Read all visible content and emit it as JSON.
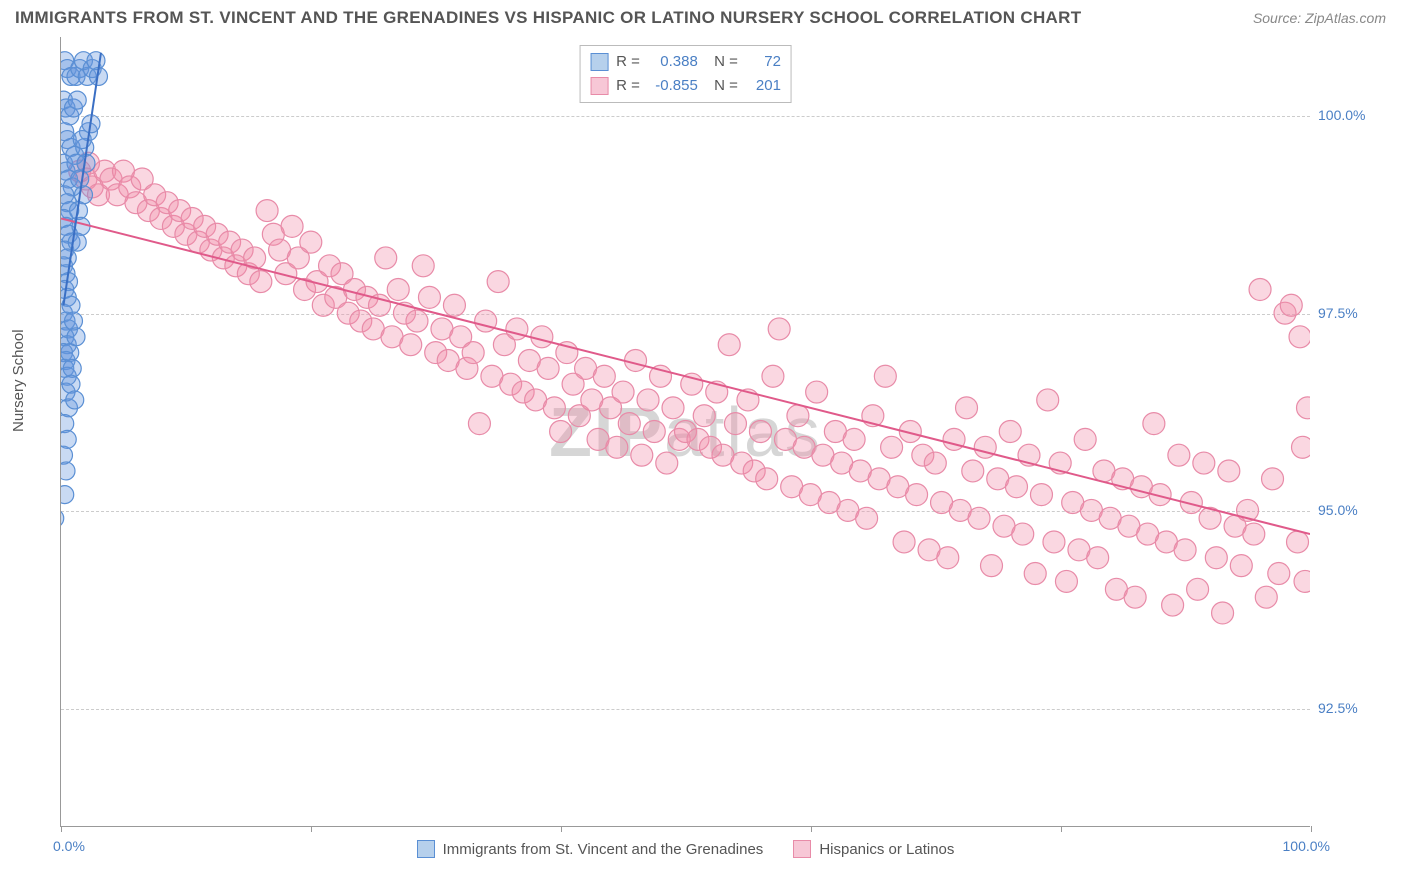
{
  "title": "IMMIGRANTS FROM ST. VINCENT AND THE GRENADINES VS HISPANIC OR LATINO NURSERY SCHOOL CORRELATION CHART",
  "source": "Source: ZipAtlas.com",
  "y_axis_label": "Nursery School",
  "watermark_bold": "ZIP",
  "watermark_thin": "atlas",
  "chart": {
    "type": "scatter",
    "xlim": [
      0,
      100
    ],
    "ylim": [
      91,
      101
    ],
    "x_ticks": [
      0,
      20,
      40,
      60,
      80,
      100
    ],
    "x_tick_labels": {
      "0": "0.0%",
      "100": "100.0%"
    },
    "y_ticks": [
      92.5,
      95.0,
      97.5,
      100.0
    ],
    "y_tick_labels": [
      "92.5%",
      "95.0%",
      "97.5%",
      "100.0%"
    ],
    "grid_color": "#cccccc",
    "axis_color": "#999999",
    "background_color": "#ffffff",
    "tick_label_color": "#4a7fc4",
    "series": [
      {
        "name": "Immigrants from St. Vincent and the Grenadines",
        "color_fill": "rgba(100,150,220,0.35)",
        "color_stroke": "#5a8fd4",
        "swatch_fill": "#b6d0ec",
        "swatch_stroke": "#5a8fd4",
        "R": "0.388",
        "N": "72",
        "regression": {
          "x1": 0.2,
          "y1": 97.6,
          "x2": 3.2,
          "y2": 100.8,
          "color": "#3a6fc4",
          "width": 2
        },
        "marker_radius": 9,
        "points": [
          [
            0.3,
            100.7
          ],
          [
            0.5,
            100.6
          ],
          [
            0.8,
            100.5
          ],
          [
            1.2,
            100.5
          ],
          [
            1.5,
            100.6
          ],
          [
            1.8,
            100.7
          ],
          [
            2.1,
            100.5
          ],
          [
            2.5,
            100.6
          ],
          [
            2.8,
            100.7
          ],
          [
            3.0,
            100.5
          ],
          [
            0.2,
            100.2
          ],
          [
            0.4,
            100.1
          ],
          [
            0.7,
            100.0
          ],
          [
            1.0,
            100.1
          ],
          [
            1.3,
            100.2
          ],
          [
            0.3,
            99.8
          ],
          [
            0.5,
            99.7
          ],
          [
            0.8,
            99.6
          ],
          [
            1.1,
            99.5
          ],
          [
            0.2,
            99.4
          ],
          [
            0.4,
            99.3
          ],
          [
            0.6,
            99.2
          ],
          [
            0.9,
            99.1
          ],
          [
            0.3,
            99.0
          ],
          [
            0.5,
            98.9
          ],
          [
            0.7,
            98.8
          ],
          [
            0.2,
            98.7
          ],
          [
            0.4,
            98.6
          ],
          [
            0.6,
            98.5
          ],
          [
            0.8,
            98.4
          ],
          [
            0.3,
            98.3
          ],
          [
            0.5,
            98.2
          ],
          [
            0.2,
            98.1
          ],
          [
            0.4,
            98.0
          ],
          [
            0.6,
            97.9
          ],
          [
            0.3,
            97.8
          ],
          [
            0.5,
            97.7
          ],
          [
            0.2,
            97.5
          ],
          [
            0.4,
            97.4
          ],
          [
            0.6,
            97.3
          ],
          [
            0.3,
            97.2
          ],
          [
            0.5,
            97.1
          ],
          [
            0.2,
            97.0
          ],
          [
            0.4,
            96.9
          ],
          [
            0.3,
            96.8
          ],
          [
            0.5,
            96.7
          ],
          [
            1.2,
            99.4
          ],
          [
            1.5,
            99.2
          ],
          [
            1.8,
            99.0
          ],
          [
            1.4,
            98.8
          ],
          [
            1.6,
            98.6
          ],
          [
            1.3,
            98.4
          ],
          [
            1.9,
            99.6
          ],
          [
            2.2,
            99.8
          ],
          [
            2.0,
            99.4
          ],
          [
            2.4,
            99.9
          ],
          [
            1.7,
            99.7
          ],
          [
            0.8,
            97.6
          ],
          [
            1.0,
            97.4
          ],
          [
            1.2,
            97.2
          ],
          [
            0.7,
            97.0
          ],
          [
            0.9,
            96.8
          ],
          [
            0.4,
            96.5
          ],
          [
            0.6,
            96.3
          ],
          [
            0.3,
            96.1
          ],
          [
            0.5,
            95.9
          ],
          [
            0.8,
            96.6
          ],
          [
            1.1,
            96.4
          ],
          [
            0.2,
            95.7
          ],
          [
            0.4,
            95.5
          ],
          [
            -0.5,
            94.9
          ],
          [
            0.3,
            95.2
          ]
        ]
      },
      {
        "name": "Hispanics or Latinos",
        "color_fill": "rgba(240,140,170,0.35)",
        "color_stroke": "#e88ba8",
        "swatch_fill": "#f7c7d6",
        "swatch_stroke": "#e88ba8",
        "R": "-0.855",
        "N": "201",
        "regression": {
          "x1": 0,
          "y1": 98.7,
          "x2": 100,
          "y2": 94.7,
          "color": "#e05a8a",
          "width": 2
        },
        "marker_radius": 11,
        "points": [
          [
            1.5,
            99.3
          ],
          [
            2.0,
            99.2
          ],
          [
            2.5,
            99.1
          ],
          [
            3.0,
            99.0
          ],
          [
            3.5,
            99.3
          ],
          [
            4.0,
            99.2
          ],
          [
            4.5,
            99.0
          ],
          [
            5.0,
            99.3
          ],
          [
            5.5,
            99.1
          ],
          [
            6.0,
            98.9
          ],
          [
            6.5,
            99.2
          ],
          [
            7.0,
            98.8
          ],
          [
            7.5,
            99.0
          ],
          [
            8.0,
            98.7
          ],
          [
            8.5,
            98.9
          ],
          [
            9.0,
            98.6
          ],
          [
            9.5,
            98.8
          ],
          [
            10.0,
            98.5
          ],
          [
            10.5,
            98.7
          ],
          [
            11.0,
            98.4
          ],
          [
            11.5,
            98.6
          ],
          [
            12.0,
            98.3
          ],
          [
            12.5,
            98.5
          ],
          [
            13.0,
            98.2
          ],
          [
            13.5,
            98.4
          ],
          [
            14.0,
            98.1
          ],
          [
            14.5,
            98.3
          ],
          [
            15.0,
            98.0
          ],
          [
            15.5,
            98.2
          ],
          [
            16.0,
            97.9
          ],
          [
            16.5,
            98.8
          ],
          [
            17.0,
            98.5
          ],
          [
            17.5,
            98.3
          ],
          [
            18.0,
            98.0
          ],
          [
            18.5,
            98.6
          ],
          [
            19.0,
            98.2
          ],
          [
            19.5,
            97.8
          ],
          [
            20.0,
            98.4
          ],
          [
            20.5,
            97.9
          ],
          [
            21.0,
            97.6
          ],
          [
            21.5,
            98.1
          ],
          [
            22.0,
            97.7
          ],
          [
            22.5,
            98.0
          ],
          [
            23.0,
            97.5
          ],
          [
            23.5,
            97.8
          ],
          [
            24.0,
            97.4
          ],
          [
            24.5,
            97.7
          ],
          [
            25.0,
            97.3
          ],
          [
            25.5,
            97.6
          ],
          [
            26.0,
            98.2
          ],
          [
            26.5,
            97.2
          ],
          [
            27.0,
            97.8
          ],
          [
            27.5,
            97.5
          ],
          [
            28.0,
            97.1
          ],
          [
            28.5,
            97.4
          ],
          [
            29.0,
            98.1
          ],
          [
            29.5,
            97.7
          ],
          [
            30.0,
            97.0
          ],
          [
            30.5,
            97.3
          ],
          [
            31.0,
            96.9
          ],
          [
            31.5,
            97.6
          ],
          [
            32.0,
            97.2
          ],
          [
            32.5,
            96.8
          ],
          [
            33.0,
            97.0
          ],
          [
            33.5,
            96.1
          ],
          [
            34.0,
            97.4
          ],
          [
            34.5,
            96.7
          ],
          [
            35.0,
            97.9
          ],
          [
            35.5,
            97.1
          ],
          [
            36.0,
            96.6
          ],
          [
            36.5,
            97.3
          ],
          [
            37.0,
            96.5
          ],
          [
            37.5,
            96.9
          ],
          [
            38.0,
            96.4
          ],
          [
            38.5,
            97.2
          ],
          [
            39.0,
            96.8
          ],
          [
            39.5,
            96.3
          ],
          [
            40.0,
            96.0
          ],
          [
            40.5,
            97.0
          ],
          [
            41.0,
            96.6
          ],
          [
            41.5,
            96.2
          ],
          [
            42.0,
            96.8
          ],
          [
            42.5,
            96.4
          ],
          [
            43.0,
            95.9
          ],
          [
            43.5,
            96.7
          ],
          [
            44.0,
            96.3
          ],
          [
            44.5,
            95.8
          ],
          [
            45.0,
            96.5
          ],
          [
            45.5,
            96.1
          ],
          [
            46.0,
            96.9
          ],
          [
            46.5,
            95.7
          ],
          [
            47.0,
            96.4
          ],
          [
            47.5,
            96.0
          ],
          [
            48.0,
            96.7
          ],
          [
            48.5,
            95.6
          ],
          [
            49.0,
            96.3
          ],
          [
            49.5,
            95.9
          ],
          [
            50.0,
            96.0
          ],
          [
            50.5,
            96.6
          ],
          [
            51.0,
            95.9
          ],
          [
            51.5,
            96.2
          ],
          [
            52.0,
            95.8
          ],
          [
            52.5,
            96.5
          ],
          [
            53.0,
            95.7
          ],
          [
            53.5,
            97.1
          ],
          [
            54.0,
            96.1
          ],
          [
            54.5,
            95.6
          ],
          [
            55.0,
            96.4
          ],
          [
            55.5,
            95.5
          ],
          [
            56.0,
            96.0
          ],
          [
            56.5,
            95.4
          ],
          [
            57.0,
            96.7
          ],
          [
            57.5,
            97.3
          ],
          [
            58.0,
            95.9
          ],
          [
            58.5,
            95.3
          ],
          [
            59.0,
            96.2
          ],
          [
            59.5,
            95.8
          ],
          [
            60.0,
            95.2
          ],
          [
            60.5,
            96.5
          ],
          [
            61.0,
            95.7
          ],
          [
            61.5,
            95.1
          ],
          [
            62.0,
            96.0
          ],
          [
            62.5,
            95.6
          ],
          [
            63.0,
            95.0
          ],
          [
            63.5,
            95.9
          ],
          [
            64.0,
            95.5
          ],
          [
            64.5,
            94.9
          ],
          [
            65.0,
            96.2
          ],
          [
            65.5,
            95.4
          ],
          [
            66.0,
            96.7
          ],
          [
            66.5,
            95.8
          ],
          [
            67.0,
            95.3
          ],
          [
            67.5,
            94.6
          ],
          [
            68.0,
            96.0
          ],
          [
            68.5,
            95.2
          ],
          [
            69.0,
            95.7
          ],
          [
            69.5,
            94.5
          ],
          [
            70.0,
            95.6
          ],
          [
            70.5,
            95.1
          ],
          [
            71.0,
            94.4
          ],
          [
            71.5,
            95.9
          ],
          [
            72.0,
            95.0
          ],
          [
            72.5,
            96.3
          ],
          [
            73.0,
            95.5
          ],
          [
            73.5,
            94.9
          ],
          [
            74.0,
            95.8
          ],
          [
            74.5,
            94.3
          ],
          [
            75.0,
            95.4
          ],
          [
            75.5,
            94.8
          ],
          [
            76.0,
            96.0
          ],
          [
            76.5,
            95.3
          ],
          [
            77.0,
            94.7
          ],
          [
            77.5,
            95.7
          ],
          [
            78.0,
            94.2
          ],
          [
            78.5,
            95.2
          ],
          [
            79.0,
            96.4
          ],
          [
            79.5,
            94.6
          ],
          [
            80.0,
            95.6
          ],
          [
            80.5,
            94.1
          ],
          [
            81.0,
            95.1
          ],
          [
            81.5,
            94.5
          ],
          [
            82.0,
            95.9
          ],
          [
            82.5,
            95.0
          ],
          [
            83.0,
            94.4
          ],
          [
            83.5,
            95.5
          ],
          [
            84.0,
            94.9
          ],
          [
            84.5,
            94.0
          ],
          [
            85.0,
            95.4
          ],
          [
            85.5,
            94.8
          ],
          [
            86.0,
            93.9
          ],
          [
            86.5,
            95.3
          ],
          [
            87.0,
            94.7
          ],
          [
            87.5,
            96.1
          ],
          [
            88.0,
            95.2
          ],
          [
            88.5,
            94.6
          ],
          [
            89.0,
            93.8
          ],
          [
            89.5,
            95.7
          ],
          [
            90.0,
            94.5
          ],
          [
            90.5,
            95.1
          ],
          [
            91.0,
            94.0
          ],
          [
            91.5,
            95.6
          ],
          [
            92.0,
            94.9
          ],
          [
            92.5,
            94.4
          ],
          [
            93.0,
            93.7
          ],
          [
            93.5,
            95.5
          ],
          [
            94.0,
            94.8
          ],
          [
            94.5,
            94.3
          ],
          [
            95.0,
            95.0
          ],
          [
            95.5,
            94.7
          ],
          [
            96.0,
            97.8
          ],
          [
            96.5,
            93.9
          ],
          [
            97.0,
            95.4
          ],
          [
            97.5,
            94.2
          ],
          [
            98.0,
            97.5
          ],
          [
            98.5,
            97.6
          ],
          [
            99.0,
            94.6
          ],
          [
            99.2,
            97.2
          ],
          [
            99.4,
            95.8
          ],
          [
            99.6,
            94.1
          ],
          [
            99.8,
            96.3
          ],
          [
            2.2,
            99.4
          ]
        ]
      }
    ]
  },
  "bottom_legend": [
    {
      "label": "Immigrants from St. Vincent and the Grenadines",
      "fill": "#b6d0ec",
      "stroke": "#5a8fd4"
    },
    {
      "label": "Hispanics or Latinos",
      "fill": "#f7c7d6",
      "stroke": "#e88ba8"
    }
  ]
}
